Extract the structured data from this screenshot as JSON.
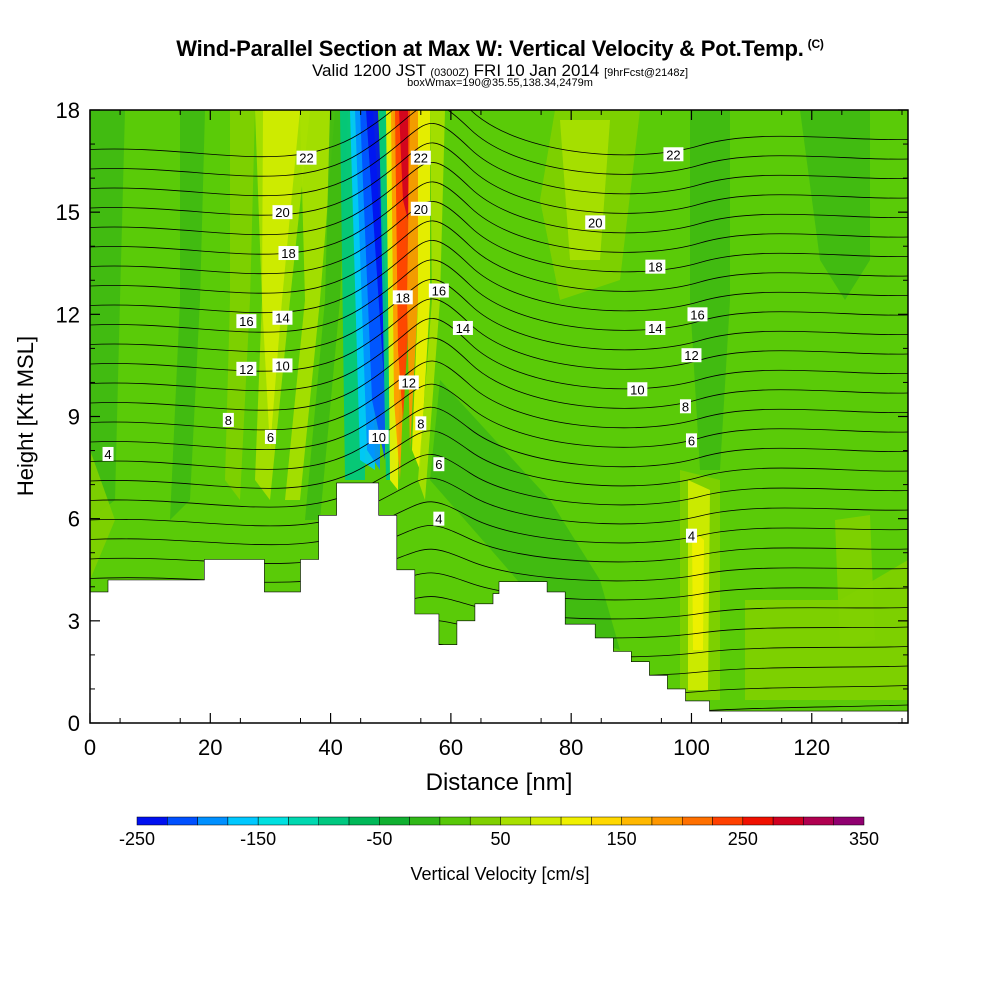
{
  "header": {
    "title": "Wind-Parallel Section at Max W: Vertical Velocity & Pot.Temp.",
    "title_mark": "(C)",
    "valid_prefix": "Valid 1200 JST",
    "valid_utc": "(0300Z)",
    "valid_date": "FRI 10 Jan 2014",
    "forecast": "[9hrFcst@2148z]",
    "box_info": "boxWmax=190@35.55,138.34,2479m"
  },
  "chart_data": {
    "type": "heatmap",
    "xlabel": "Distance [nm]",
    "ylabel": "Height [Kft MSL]",
    "xlim": [
      0,
      136
    ],
    "ylim": [
      0,
      18
    ],
    "xticks": [
      "0",
      "20",
      "40",
      "60",
      "80",
      "100",
      "120"
    ],
    "yticks": [
      "0",
      "3",
      "6",
      "9",
      "12",
      "15",
      "18"
    ],
    "colorbar": {
      "label": "Vertical Velocity [cm/s]",
      "range": [
        -250,
        350
      ],
      "step": 25,
      "tick_labels": [
        "-250",
        "-150",
        "-50",
        "50",
        "150",
        "250",
        "350"
      ],
      "colors": [
        "#0010f0",
        "#0050ff",
        "#0090ff",
        "#00c8ff",
        "#00e0e0",
        "#00d8b0",
        "#00c880",
        "#00b858",
        "#10b030",
        "#30b818",
        "#58c808",
        "#80d000",
        "#a8e000",
        "#d0ec00",
        "#f0f000",
        "#ffd800",
        "#ffb800",
        "#ff9800",
        "#ff7000",
        "#ff4000",
        "#f01000",
        "#d00020",
        "#b00050",
        "#900070"
      ]
    },
    "terrain": [
      [
        0,
        3.85
      ],
      [
        3,
        3.85
      ],
      [
        3,
        4.2
      ],
      [
        19,
        4.2
      ],
      [
        19,
        4.8
      ],
      [
        29,
        4.8
      ],
      [
        29,
        3.85
      ],
      [
        35,
        3.85
      ],
      [
        35,
        4.8
      ],
      [
        38,
        4.8
      ],
      [
        38,
        6.1
      ],
      [
        41,
        6.1
      ],
      [
        41,
        7.05
      ],
      [
        48,
        7.05
      ],
      [
        48,
        6.1
      ],
      [
        51,
        6.1
      ],
      [
        51,
        4.5
      ],
      [
        54,
        4.5
      ],
      [
        54,
        3.2
      ],
      [
        58,
        3.2
      ],
      [
        58,
        2.3
      ],
      [
        61,
        2.3
      ],
      [
        61,
        3.0
      ],
      [
        64,
        3.0
      ],
      [
        64,
        3.5
      ],
      [
        67,
        3.5
      ],
      [
        67,
        3.8
      ],
      [
        68,
        3.8
      ],
      [
        68,
        4.15
      ],
      [
        76,
        4.15
      ],
      [
        76,
        3.85
      ],
      [
        79,
        3.85
      ],
      [
        79,
        2.9
      ],
      [
        84,
        2.9
      ],
      [
        84,
        2.5
      ],
      [
        87,
        2.5
      ],
      [
        87,
        2.1
      ],
      [
        90,
        2.1
      ],
      [
        90,
        1.8
      ],
      [
        93,
        1.8
      ],
      [
        93,
        1.4
      ],
      [
        96,
        1.4
      ],
      [
        96,
        1.0
      ],
      [
        99,
        1.0
      ],
      [
        99,
        0.65
      ],
      [
        103,
        0.65
      ],
      [
        103,
        0.35
      ],
      [
        136,
        0.35
      ]
    ],
    "contour_labels": [
      {
        "x": 3,
        "y": 7.9,
        "v": "4"
      },
      {
        "x": 23,
        "y": 8.9,
        "v": "8"
      },
      {
        "x": 30,
        "y": 8.4,
        "v": "6"
      },
      {
        "x": 26,
        "y": 10.4,
        "v": "12"
      },
      {
        "x": 32,
        "y": 10.5,
        "v": "10"
      },
      {
        "x": 26,
        "y": 11.8,
        "v": "16"
      },
      {
        "x": 32,
        "y": 11.9,
        "v": "14"
      },
      {
        "x": 33,
        "y": 13.8,
        "v": "18"
      },
      {
        "x": 32,
        "y": 15.0,
        "v": "20"
      },
      {
        "x": 36,
        "y": 16.6,
        "v": "22"
      },
      {
        "x": 48,
        "y": 8.4,
        "v": "10"
      },
      {
        "x": 55,
        "y": 8.8,
        "v": "8"
      },
      {
        "x": 53,
        "y": 10.0,
        "v": "12"
      },
      {
        "x": 58,
        "y": 7.6,
        "v": "6"
      },
      {
        "x": 58,
        "y": 6.0,
        "v": "4"
      },
      {
        "x": 52,
        "y": 12.5,
        "v": "18"
      },
      {
        "x": 58,
        "y": 12.7,
        "v": "16"
      },
      {
        "x": 62,
        "y": 11.6,
        "v": "14"
      },
      {
        "x": 55,
        "y": 15.1,
        "v": "20"
      },
      {
        "x": 55,
        "y": 16.6,
        "v": "22"
      },
      {
        "x": 84,
        "y": 14.7,
        "v": "20"
      },
      {
        "x": 97,
        "y": 16.7,
        "v": "22"
      },
      {
        "x": 94,
        "y": 13.4,
        "v": "18"
      },
      {
        "x": 101,
        "y": 12.0,
        "v": "16"
      },
      {
        "x": 94,
        "y": 11.6,
        "v": "14"
      },
      {
        "x": 100,
        "y": 10.8,
        "v": "12"
      },
      {
        "x": 91,
        "y": 9.8,
        "v": "10"
      },
      {
        "x": 99,
        "y": 9.3,
        "v": "8"
      },
      {
        "x": 100,
        "y": 8.3,
        "v": "6"
      },
      {
        "x": 100,
        "y": 5.5,
        "v": "4"
      }
    ]
  }
}
